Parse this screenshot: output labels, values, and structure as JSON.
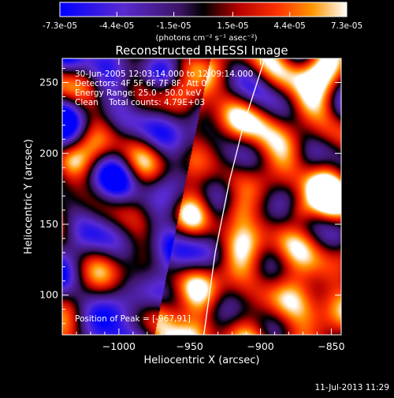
{
  "colorbar": {
    "tick_labels": [
      "-7.3e-05",
      "-4.4e-05",
      "-1.5e-05",
      "1.5e-05",
      "4.4e-05",
      "7.3e-05"
    ],
    "tick_values": [
      -7.3e-05,
      -4.4e-05,
      -1.5e-05,
      1.5e-05,
      4.4e-05,
      7.3e-05
    ],
    "range": [
      -7.3e-05,
      7.3e-05
    ],
    "units_label": "(photons cm⁻² s⁻¹ asec⁻²)"
  },
  "chart_data": {
    "type": "heatmap",
    "title": "Reconstructed RHESSI Image",
    "xlabel": "Heliocentric X (arcsec)",
    "ylabel": "Heliocentric Y (arcsec)",
    "xlim": [
      -1040,
      -843
    ],
    "ylim": [
      72,
      267
    ],
    "xticks": [
      -1000,
      -950,
      -900,
      -850
    ],
    "yticks": [
      100,
      150,
      200,
      250
    ],
    "xtick_labels": [
      "−1000",
      "−950",
      "−900",
      "−850"
    ],
    "ytick_labels": [
      "100",
      "150",
      "200",
      "250"
    ],
    "colormap": "blue-purple-black-red-orange-yellow-white",
    "annotations": [
      "30-Jun-2005 12:03:14.000 to 12:09:14.000",
      "Detectors: 4F 5F 6F 7F 8F, Att 0",
      "Energy Range: 25.0 - 50.0 keV",
      "Clean    Total counts: 4.79E+03"
    ],
    "peak_label": "Position of Peak = [-967,91]",
    "peak": [
      -967,
      91
    ],
    "limb_curve": [
      [
        -940,
        72
      ],
      [
        -932,
        130
      ],
      [
        -922,
        180
      ],
      [
        -912,
        220
      ],
      [
        -897,
        267
      ]
    ]
  },
  "footer": {
    "timestamp": "11-Jul-2013 11:29"
  }
}
